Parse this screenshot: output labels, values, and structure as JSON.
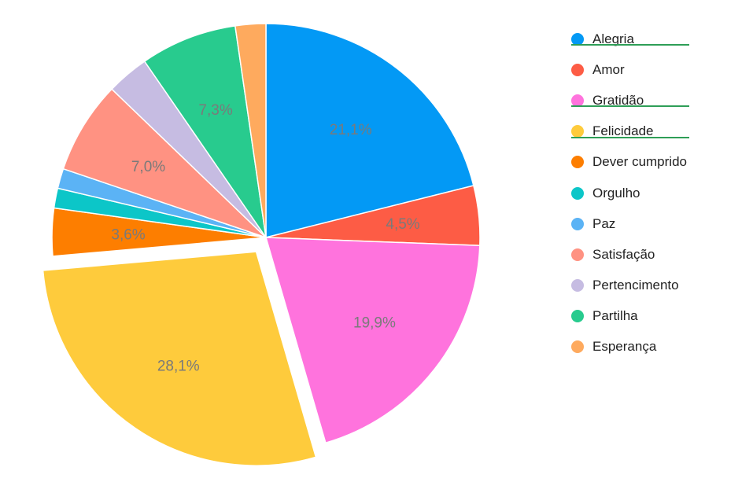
{
  "chart_data": {
    "type": "pie",
    "title": "",
    "exploded_category": "Felicidade",
    "slices": [
      {
        "name": "Alegria",
        "value": 21.1,
        "label": "21,1%",
        "color": "#0399f5"
      },
      {
        "name": "Amor",
        "value": 4.5,
        "label": "4,5%",
        "color": "#fd5c45"
      },
      {
        "name": "Gratidão",
        "value": 19.9,
        "label": "19,9%",
        "color": "#ff73dd"
      },
      {
        "name": "Felicidade",
        "value": 28.1,
        "label": "28,1%",
        "color": "#fecb3c"
      },
      {
        "name": "Dever cumprido",
        "value": 3.6,
        "label": "3,6%",
        "color": "#fd7e00"
      },
      {
        "name": "Orgulho",
        "value": 1.5,
        "label": "",
        "color": "#0cc6c8"
      },
      {
        "name": "Paz",
        "value": 1.5,
        "label": "",
        "color": "#5bb3f5"
      },
      {
        "name": "Satisfação",
        "value": 7.0,
        "label": "7,0%",
        "color": "#ff9282"
      },
      {
        "name": "Pertencimento",
        "value": 3.2,
        "label": "",
        "color": "#c6bce2"
      },
      {
        "name": "Partilha",
        "value": 7.3,
        "label": "7,3%",
        "color": "#28cb8e"
      },
      {
        "name": "Esperança",
        "value": 2.3,
        "label": "",
        "color": "#feaa5e"
      }
    ],
    "legend": {
      "placement": "right",
      "underlined": [
        "Alegria",
        "Gratidão",
        "Felicidade"
      ],
      "underline_color": "#2e9e57"
    }
  }
}
